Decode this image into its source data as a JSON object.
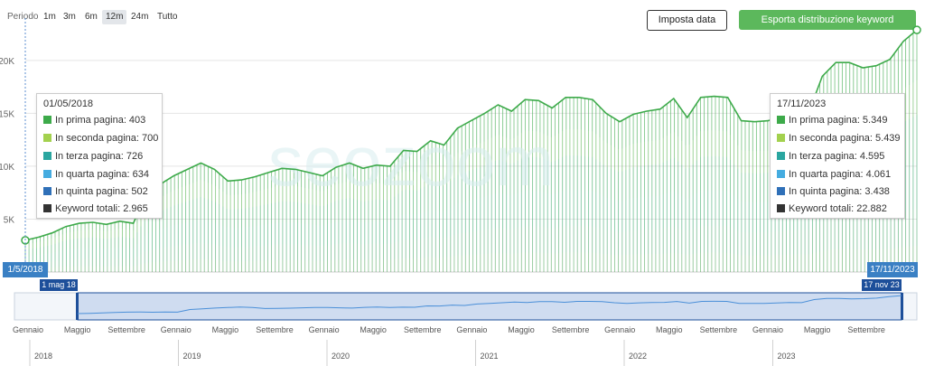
{
  "toolbar": {
    "period_label": "Periodo",
    "periods": [
      "1m",
      "3m",
      "6m",
      "12m",
      "24m",
      "Tutto"
    ],
    "active_period": "12m",
    "set_date_label": "Imposta data",
    "export_label": "Esporta distribuzione keyword"
  },
  "colors": {
    "line": "#3daa4a",
    "p1": "#3daa4a",
    "p2": "#a3d14e",
    "p3": "#2aa6a0",
    "p4": "#45ace0",
    "p5": "#2f70b8",
    "total": "#333333",
    "accent": "#2f7fc1"
  },
  "chart_data": {
    "type": "area",
    "title": "",
    "ylim": [
      0,
      24000
    ],
    "y_ticks": [
      "5K",
      "10K",
      "15K",
      "20K"
    ],
    "y_tick_values": [
      5000,
      10000,
      15000,
      20000
    ],
    "grid": true,
    "start_label": "1/5/2018",
    "end_label": "17/11/2023",
    "series_names": [
      "In prima pagina",
      "In seconda pagina",
      "In terza pagina",
      "In quarta pagina",
      "In quinta pagina"
    ],
    "total_points": [
      [
        "2018-05",
        3000
      ],
      [
        "2018-06",
        3300
      ],
      [
        "2018-07",
        3700
      ],
      [
        "2018-08",
        4300
      ],
      [
        "2018-09",
        4600
      ],
      [
        "2018-10",
        4700
      ],
      [
        "2018-11",
        4500
      ],
      [
        "2018-12",
        4800
      ],
      [
        "2019-01",
        4600
      ],
      [
        "2019-02",
        7500
      ],
      [
        "2019-03",
        8300
      ],
      [
        "2019-04",
        9100
      ],
      [
        "2019-05",
        9700
      ],
      [
        "2019-06",
        10300
      ],
      [
        "2019-07",
        9700
      ],
      [
        "2019-08",
        8600
      ],
      [
        "2019-09",
        8700
      ],
      [
        "2019-10",
        9000
      ],
      [
        "2019-11",
        9400
      ],
      [
        "2019-12",
        9800
      ],
      [
        "2020-01",
        9700
      ],
      [
        "2020-02",
        9400
      ],
      [
        "2020-03",
        9100
      ],
      [
        "2020-04",
        9900
      ],
      [
        "2020-05",
        10300
      ],
      [
        "2020-06",
        9800
      ],
      [
        "2020-07",
        10100
      ],
      [
        "2020-08",
        10000
      ],
      [
        "2020-09",
        11500
      ],
      [
        "2020-10",
        11400
      ],
      [
        "2020-11",
        12400
      ],
      [
        "2020-12",
        12000
      ],
      [
        "2021-01",
        13600
      ],
      [
        "2021-02",
        14300
      ],
      [
        "2021-03",
        15000
      ],
      [
        "2021-04",
        15800
      ],
      [
        "2021-05",
        15200
      ],
      [
        "2021-06",
        16300
      ],
      [
        "2021-07",
        16200
      ],
      [
        "2021-08",
        15500
      ],
      [
        "2021-09",
        16500
      ],
      [
        "2021-10",
        16500
      ],
      [
        "2021-11",
        16300
      ],
      [
        "2021-12",
        15000
      ],
      [
        "2022-01",
        14200
      ],
      [
        "2022-02",
        14900
      ],
      [
        "2022-03",
        15200
      ],
      [
        "2022-04",
        15400
      ],
      [
        "2022-05",
        16400
      ],
      [
        "2022-06",
        14600
      ],
      [
        "2022-07",
        16500
      ],
      [
        "2022-08",
        16600
      ],
      [
        "2022-09",
        16500
      ],
      [
        "2022-10",
        14300
      ],
      [
        "2022-11",
        14200
      ],
      [
        "2022-12",
        14300
      ],
      [
        "2023-01",
        14800
      ],
      [
        "2023-02",
        15200
      ],
      [
        "2023-03",
        15100
      ],
      [
        "2023-04",
        18500
      ],
      [
        "2023-05",
        19800
      ],
      [
        "2023-06",
        19800
      ],
      [
        "2023-07",
        19300
      ],
      [
        "2023-08",
        19500
      ],
      [
        "2023-09",
        20100
      ],
      [
        "2023-10",
        21800
      ],
      [
        "2023-11",
        22882
      ]
    ],
    "left_tooltip": {
      "date": "01/05/2018",
      "rows": [
        {
          "label": "In prima pagina: 403",
          "color": "#3daa4a"
        },
        {
          "label": "In seconda pagina: 700",
          "color": "#a3d14e"
        },
        {
          "label": "In terza pagina: 726",
          "color": "#2aa6a0"
        },
        {
          "label": "In quarta pagina: 634",
          "color": "#45ace0"
        },
        {
          "label": "In quinta pagina: 502",
          "color": "#2f70b8"
        },
        {
          "label": "Keyword totali: 2.965",
          "color": "#333333"
        }
      ]
    },
    "right_tooltip": {
      "date": "17/11/2023",
      "rows": [
        {
          "label": "In prima pagina: 5.349",
          "color": "#3daa4a"
        },
        {
          "label": "In seconda pagina: 5.439",
          "color": "#a3d14e"
        },
        {
          "label": "In terza pagina: 4.595",
          "color": "#2aa6a0"
        },
        {
          "label": "In quarta pagina: 4.061",
          "color": "#45ace0"
        },
        {
          "label": "In quinta pagina: 3.438",
          "color": "#2f70b8"
        },
        {
          "label": "Keyword totali: 22.882",
          "color": "#333333"
        }
      ]
    }
  },
  "navigator": {
    "start_flag": "1 mag 18",
    "end_flag": "17 nov 23",
    "month_labels": [
      "Gennaio",
      "Maggio",
      "Settembre",
      "Gennaio",
      "Maggio",
      "Settembre",
      "Gennaio",
      "Maggio",
      "Settembre",
      "Gennaio",
      "Maggio",
      "Settembre",
      "Gennaio",
      "Maggio",
      "Settembre",
      "Gennaio",
      "Maggio",
      "Settembre"
    ],
    "year_labels": [
      "2018",
      "2019",
      "2020",
      "2021",
      "2022",
      "2023"
    ]
  }
}
